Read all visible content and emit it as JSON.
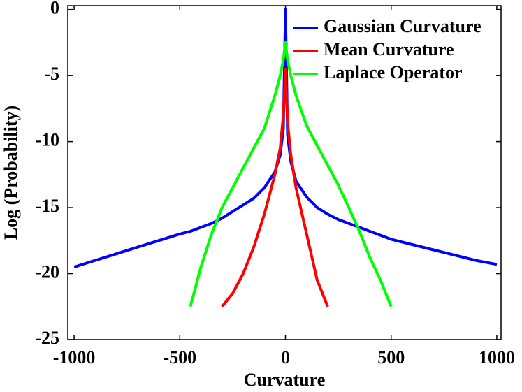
{
  "chart_data": {
    "type": "line",
    "x_label": "Curvature",
    "y_label": "Log (Probability)",
    "x": [
      -1000,
      -900,
      -800,
      -700,
      -600,
      -500,
      -450,
      -400,
      -350,
      -300,
      -250,
      -200,
      -150,
      -100,
      -50,
      -25,
      -10,
      0,
      10,
      25,
      50,
      100,
      150,
      200,
      250,
      300,
      350,
      400,
      450,
      500,
      600,
      700,
      800,
      900,
      1000
    ],
    "series": [
      {
        "name": "Gaussian Curvature",
        "color": "#0000ff",
        "values": [
          -19.5,
          -19,
          -18.5,
          -18,
          -17.5,
          -17,
          -16.8,
          -16.5,
          -16.2,
          -15.8,
          -15.3,
          -14.8,
          -14.3,
          -13.5,
          -12.3,
          -11,
          -9,
          0,
          -9.5,
          -11.5,
          -13,
          -14.2,
          -15,
          -15.5,
          -15.9,
          -16.2,
          -16.5,
          -16.8,
          -17.1,
          -17.4,
          -17.8,
          -18.2,
          -18.6,
          -19,
          -19.3
        ]
      },
      {
        "name": "Mean Curvature",
        "color": "#ff0000",
        "values": [
          null,
          null,
          null,
          null,
          null,
          null,
          null,
          null,
          null,
          -22.5,
          -21.5,
          -20,
          -18,
          -15.5,
          -12.5,
          -10.5,
          -8,
          -4.5,
          -8.5,
          -11,
          -13.5,
          -17,
          -20.5,
          -22.5,
          null,
          null,
          null,
          null,
          null,
          null,
          null,
          null,
          null,
          null,
          null
        ]
      },
      {
        "name": "Laplace Operator",
        "color": "#00ff00",
        "values": [
          null,
          null,
          null,
          null,
          null,
          null,
          -22.5,
          -19.5,
          -17,
          -15,
          -13.5,
          -12,
          -10.5,
          -9,
          -6.5,
          -5,
          -3.8,
          -2.5,
          -3.8,
          -5,
          -6.5,
          -8.8,
          -10.3,
          -11.8,
          -13.3,
          -15,
          -16.8,
          -18.8,
          -20.5,
          -22.5,
          null,
          null,
          null,
          null,
          null
        ]
      }
    ],
    "xlim": [
      -1030,
      1020
    ],
    "ylim": [
      -25,
      0.3
    ],
    "xticks": [
      -1000,
      -500,
      0,
      500,
      1000
    ],
    "yticks": [
      -25,
      -20,
      -15,
      -10,
      -5,
      0
    ],
    "legend": "upper right"
  }
}
